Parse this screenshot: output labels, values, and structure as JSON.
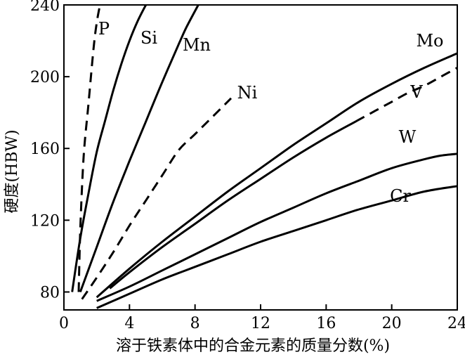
{
  "chart_data": {
    "type": "line",
    "title": "",
    "xlabel": "溶于铁素体中的合金元素的质量分数(%)",
    "ylabel": "硬度(HBW)",
    "xlim": [
      0,
      24
    ],
    "ylim": [
      70,
      240
    ],
    "xticks": [
      0,
      4,
      8,
      12,
      16,
      20,
      24
    ],
    "yticks": [
      80,
      120,
      160,
      200,
      240
    ],
    "grid": false,
    "legend": "none",
    "series": [
      {
        "name": "P",
        "style": "dashed",
        "x": [
          0.9,
          1.0,
          1.2,
          1.5,
          1.8,
          2.0,
          2.2
        ],
        "y": [
          80,
          115,
          155,
          185,
          215,
          230,
          240
        ]
      },
      {
        "name": "Si",
        "style": "solid",
        "x": [
          0.5,
          1.0,
          1.5,
          2.0,
          2.5,
          3.0,
          3.5,
          4.0,
          4.5,
          5.0
        ],
        "y": [
          80,
          110,
          135,
          158,
          175,
          192,
          207,
          220,
          231,
          240
        ]
      },
      {
        "name": "Mn",
        "style": "solid",
        "x": [
          1.0,
          2.0,
          3.0,
          4.0,
          5.0,
          6.0,
          7.0,
          7.5,
          8.2
        ],
        "y": [
          80,
          105,
          130,
          153,
          175,
          197,
          218,
          228,
          240
        ]
      },
      {
        "name": "Ni",
        "style": "dashed",
        "x": [
          1.1,
          2.0,
          3.0,
          4.0,
          5.0,
          6.0,
          7.0,
          8.0,
          9.0,
          10.2
        ],
        "y": [
          76,
          88,
          102,
          117,
          131,
          145,
          159,
          168,
          177,
          188
        ]
      },
      {
        "name": "Mo",
        "style": "solid",
        "x": [
          2.0,
          4.0,
          6.0,
          8.0,
          10.0,
          12.0,
          14.0,
          16.0,
          18.0,
          20.0,
          22.0,
          24.0
        ],
        "y": [
          77,
          93,
          108,
          122,
          136,
          149,
          162,
          174,
          186,
          196,
          205,
          213
        ]
      },
      {
        "name": "V",
        "style": "solid",
        "x": [
          2.8,
          4.0,
          6.0,
          8.0,
          10.0,
          12.0,
          14.0,
          16.0,
          17.8
        ],
        "y": [
          82,
          91,
          105,
          118,
          131,
          143,
          155,
          166,
          175
        ]
      },
      {
        "name": "V",
        "style": "dashed",
        "x": [
          17.8,
          19.0,
          20.0,
          21.0,
          22.0,
          23.0,
          24.0
        ],
        "y": [
          175,
          181,
          186,
          191,
          195,
          200,
          205
        ]
      },
      {
        "name": "W",
        "style": "solid",
        "x": [
          2.0,
          4.0,
          6.0,
          8.0,
          10.0,
          12.0,
          14.0,
          16.0,
          18.0,
          20.0,
          22.0,
          23.0,
          24.0
        ],
        "y": [
          75,
          83,
          92,
          101,
          110,
          119,
          127,
          135,
          142,
          149,
          154,
          156,
          157
        ]
      },
      {
        "name": "Cr",
        "style": "solid",
        "x": [
          2.0,
          4.0,
          6.0,
          8.0,
          10.0,
          12.0,
          14.0,
          16.0,
          18.0,
          20.0,
          22.0,
          24.0
        ],
        "y": [
          71,
          79,
          87,
          94,
          101,
          108,
          114,
          120,
          126,
          131,
          136,
          139
        ]
      }
    ]
  }
}
